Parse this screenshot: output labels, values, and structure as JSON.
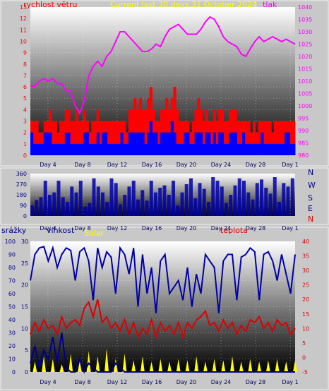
{
  "title": "Current last 30 days 31 October 2024",
  "colors": {
    "background": "#c8c8c8",
    "wind": "#ff0000",
    "gust_fill": "#ff0000",
    "avg_fill": "#0000ff",
    "pressure": "#ff00ff",
    "direction": "#0000aa",
    "humidity": "#0000aa",
    "temperature": "#dd0000",
    "solar": "#ffff00",
    "rain": "#000088",
    "title": "#ffff00"
  },
  "x_ticks": [
    "Day 4",
    "Day 8",
    "Day 12",
    "Day 16",
    "Day 20",
    "Day 24",
    "Day 28",
    "Day 1"
  ],
  "chart_data": [
    {
      "type": "line",
      "name": "wind-pressure",
      "labels": {
        "left": "rychlost větru",
        "right": "tlak"
      },
      "y_left": {
        "ticks": [
          "0",
          "1",
          "2",
          "3",
          "4",
          "5",
          "6",
          "7",
          "8",
          "9",
          "10",
          "11",
          "12",
          "13"
        ],
        "range": [
          0,
          13
        ]
      },
      "y_right": {
        "ticks": [
          "980",
          "985",
          "990",
          "995",
          "1000",
          "1005",
          "1010",
          "1015",
          "1020",
          "1025",
          "1030",
          "1035",
          "1040"
        ],
        "range": [
          980,
          1040
        ]
      },
      "series": [
        {
          "key": "wind_gust",
          "axis": "left",
          "values": [
            3,
            3,
            3,
            2,
            2,
            3,
            3,
            4,
            3,
            3,
            2,
            3,
            3,
            4,
            4,
            3,
            3,
            4,
            3,
            3,
            4,
            3,
            2,
            3,
            3,
            4,
            3,
            3,
            3,
            3,
            3,
            3,
            3,
            3,
            3,
            3,
            2,
            4,
            4,
            5,
            4,
            5,
            4,
            4,
            5,
            6,
            4,
            3,
            3,
            4,
            4,
            5,
            4,
            5,
            6,
            4,
            3,
            3,
            3,
            3,
            2,
            3,
            4,
            5,
            4,
            3,
            4,
            3,
            3,
            4,
            3,
            4,
            4,
            3,
            3,
            4,
            4,
            4,
            3,
            3,
            3,
            3,
            3,
            2,
            3,
            2,
            3,
            3,
            3,
            3,
            3,
            2,
            3,
            3,
            3,
            3,
            3,
            3,
            3,
            3
          ]
        },
        {
          "key": "wind_avg",
          "axis": "left",
          "values": [
            2,
            1,
            1,
            1,
            1,
            2,
            2,
            2,
            1,
            1,
            1,
            1,
            1,
            2,
            2,
            1,
            1,
            1,
            1,
            1,
            2,
            2,
            1,
            1,
            1,
            2,
            1,
            2,
            2,
            1,
            1,
            1,
            1,
            1,
            2,
            1,
            1,
            2,
            2,
            2,
            2,
            2,
            2,
            1,
            2,
            3,
            2,
            2,
            1,
            2,
            2,
            2,
            2,
            3,
            2,
            1,
            1,
            1,
            2,
            2,
            1,
            1,
            2,
            2,
            2,
            1,
            2,
            2,
            1,
            2,
            1,
            2,
            2,
            1,
            1,
            2,
            2,
            2,
            1,
            1,
            2,
            1,
            1,
            1,
            1,
            1,
            1,
            2,
            1,
            1,
            1,
            1,
            1,
            1,
            1,
            1,
            2,
            2,
            1,
            1
          ]
        },
        {
          "key": "pressure",
          "axis": "right",
          "values": [
            1008,
            1008,
            1010,
            1011,
            1010,
            1011,
            1009,
            1009,
            1006,
            1006,
            1000,
            997,
            1002,
            1012,
            1016,
            1018,
            1016,
            1020,
            1022,
            1026,
            1030,
            1030,
            1028,
            1026,
            1024,
            1022,
            1022,
            1023,
            1025,
            1024,
            1028,
            1031,
            1032,
            1033,
            1031,
            1029,
            1029,
            1029,
            1031,
            1034,
            1036,
            1035,
            1032,
            1028,
            1026,
            1025,
            1024,
            1021,
            1020,
            1023,
            1026,
            1028,
            1026,
            1027,
            1028,
            1027,
            1026,
            1027,
            1026,
            1025
          ]
        }
      ]
    },
    {
      "type": "scatter",
      "name": "wind-direction",
      "labels": {
        "compass": [
          "N",
          "W",
          "S",
          "E",
          "N"
        ]
      },
      "y_left": {
        "ticks": [
          "0",
          "90",
          "180",
          "270",
          "360"
        ],
        "range": [
          0,
          360
        ]
      },
      "series": [
        {
          "key": "direction",
          "axis": "left",
          "values": [
            90,
            135,
            160,
            300,
            180,
            200,
            300,
            160,
            120,
            250,
            200,
            300,
            80,
            110,
            320,
            250,
            200,
            120,
            320,
            280,
            100,
            180,
            250,
            300,
            140,
            220,
            130,
            300,
            200,
            240,
            260,
            180,
            300,
            90,
            200,
            270,
            320,
            150,
            280,
            230,
            120,
            330,
            300,
            250,
            110,
            180,
            260,
            320,
            300,
            200,
            140,
            280,
            310,
            240,
            190,
            330,
            120,
            280,
            250,
            320
          ]
        }
      ]
    },
    {
      "type": "line",
      "name": "humidity-temperature-solar",
      "labels": {
        "rain": "srážky",
        "humidity": "vlhkost",
        "solar": "Solar",
        "temperature": "teplota"
      },
      "y_rain": {
        "ticks": [
          "0",
          "5",
          "10",
          "15",
          "20",
          "25",
          "30"
        ],
        "range": [
          0,
          30
        ]
      },
      "y_humidity": {
        "ticks": [
          "0",
          "10",
          "20",
          "30",
          "40",
          "50",
          "60",
          "70",
          "80",
          "90",
          "100"
        ],
        "range": [
          0,
          100
        ]
      },
      "y_temp": {
        "ticks": [
          "-5",
          "0",
          "5",
          "10",
          "15",
          "20",
          "25",
          "30",
          "35",
          "40"
        ],
        "range": [
          -5,
          40
        ]
      },
      "series": [
        {
          "key": "humidity",
          "axis": "humidity",
          "values": [
            70,
            90,
            95,
            96,
            85,
            95,
            80,
            90,
            95,
            93,
            70,
            92,
            95,
            85,
            55,
            95,
            80,
            92,
            88,
            60,
            95,
            90,
            75,
            95,
            50,
            90,
            60,
            80,
            45,
            85,
            90,
            60,
            65,
            70,
            55,
            80,
            50,
            75,
            60,
            90,
            85,
            80,
            45,
            85,
            90,
            90,
            55,
            88,
            90,
            95,
            92,
            55,
            90,
            92,
            85,
            70,
            90,
            75,
            60,
            90
          ]
        },
        {
          "key": "temperature",
          "axis": "temp",
          "values": [
            8,
            12,
            9,
            13,
            10,
            11,
            8,
            14,
            10,
            12,
            13,
            11,
            17,
            19,
            14,
            20,
            12,
            14,
            10,
            12,
            9,
            13,
            8,
            12,
            7,
            10,
            8,
            13,
            7,
            12,
            9,
            11,
            8,
            12,
            7,
            12,
            10,
            13,
            14,
            16,
            11,
            12,
            9,
            13,
            10,
            12,
            8,
            11,
            9,
            13,
            12,
            14,
            10,
            12,
            9,
            13,
            11,
            12,
            8,
            10
          ]
        },
        {
          "key": "solar",
          "axis": "humidity",
          "values": [
            0,
            8,
            0,
            12,
            0,
            10,
            0,
            6,
            0,
            14,
            0,
            8,
            0,
            16,
            0,
            12,
            0,
            18,
            0,
            10,
            0,
            14,
            0,
            9,
            0,
            12,
            0,
            8,
            0,
            10,
            0,
            8,
            0,
            10,
            0,
            9,
            0,
            12,
            0,
            8,
            0,
            10,
            0,
            9,
            0,
            12,
            0,
            8,
            0,
            10,
            0,
            8,
            0,
            9,
            0,
            10,
            0,
            8,
            0,
            9
          ]
        },
        {
          "key": "rain",
          "axis": "rain",
          "values": [
            2,
            6,
            1,
            5,
            3,
            8,
            2,
            9,
            1,
            0,
            0,
            3,
            0,
            2,
            1,
            0,
            0,
            0,
            0,
            2,
            1,
            0,
            0,
            0,
            0,
            0,
            0,
            0,
            0,
            0,
            0,
            0,
            0,
            0,
            0,
            0,
            0,
            0,
            0,
            0,
            0,
            0,
            0,
            0,
            0,
            0,
            0,
            0,
            0,
            0,
            0,
            0,
            0,
            0,
            0,
            0,
            0,
            0,
            0,
            0
          ]
        }
      ]
    }
  ]
}
